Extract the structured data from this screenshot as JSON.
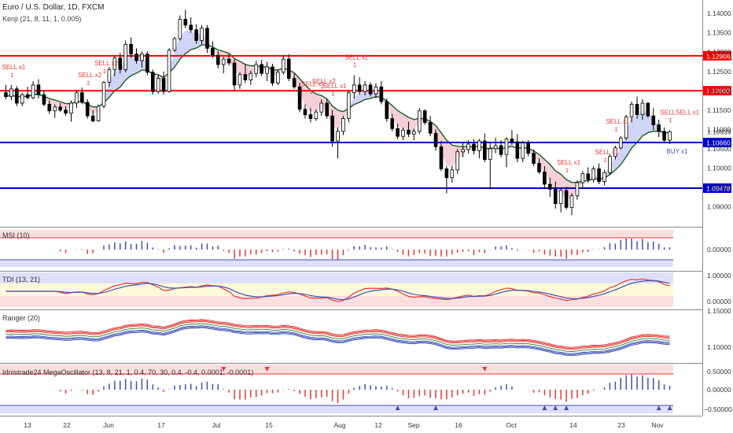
{
  "header": {
    "title": "Euro / U.S. Dollar, 1D, FXCM",
    "indicator": "Kenji (21, 8, 11, 1, 0.005)"
  },
  "panes": {
    "msi": "MSI (10)",
    "tdi": "TDI (13, 21)",
    "ranger": "Ranger (20)",
    "mega": "Idnistrade24 MegaOscillator (13, 8, 21, 1, 0.4, 70, 30, 0.4, -0.4, 0.0001, -0.0001)"
  },
  "colors": {
    "up_candle": "#ffffff",
    "down_candle": "#000000",
    "resistance": "#ff0000",
    "support": "#0000cc",
    "signal_sell": "#e53935",
    "signal_buy": "#3f51b5",
    "cloud_bull": "#c8cdf5",
    "cloud_bear": "#f5c8d2"
  },
  "chart_data": {
    "type": "candlestick",
    "y_axis": {
      "range": [
        1.085,
        1.1435
      ],
      "ticks": [
        "1.14000",
        "1.13500",
        "1.13000",
        "1.12500",
        "1.12000",
        "1.11500",
        "1.11000",
        "1.10500",
        "1.10000",
        "1.09500",
        "1.09000"
      ]
    },
    "price_lines": [
      {
        "label": "1.12906",
        "value": 1.12906,
        "color": "#ff0000"
      },
      {
        "label": "1.12002",
        "value": 1.12002,
        "color": "#ff0000"
      },
      {
        "label": "1.10660",
        "value": 1.1066,
        "color": "#0000cc"
      },
      {
        "label": "1.09478",
        "value": 1.09478,
        "color": "#0000cc"
      }
    ],
    "last_price": "1.10939",
    "x_axis_labels": [
      "13",
      "22",
      "Jun",
      "17",
      "Jul",
      "15",
      "Aug",
      "12",
      "Sep",
      "16",
      "Oct",
      "14",
      "23",
      "Nov"
    ],
    "signals": [
      {
        "text": "SELL x1",
        "type": "sell"
      },
      {
        "text": "SELL x2",
        "type": "sell"
      },
      {
        "text": "SELL x2",
        "type": "sell"
      },
      {
        "text": "SELL x1",
        "type": "sell"
      },
      {
        "text": "SELL x2",
        "type": "sell"
      },
      {
        "text": "SELL x1",
        "type": "sell"
      },
      {
        "text": "SELL x2",
        "type": "sell"
      },
      {
        "text": "SELL x1",
        "type": "sell"
      },
      {
        "text": "SELL x1",
        "type": "sell"
      },
      {
        "text": "SELL x1",
        "type": "sell"
      },
      {
        "text": "SELLSELL x1",
        "type": "sell"
      },
      {
        "text": "BUY x1",
        "type": "buy"
      }
    ],
    "candles": [
      [
        1.1195,
        1.1215,
        1.1178,
        1.1185
      ],
      [
        1.1185,
        1.1215,
        1.1175,
        1.1205
      ],
      [
        1.1205,
        1.1212,
        1.116,
        1.1168
      ],
      [
        1.1168,
        1.1195,
        1.116,
        1.119
      ],
      [
        1.119,
        1.121,
        1.1178,
        1.1182
      ],
      [
        1.1182,
        1.1225,
        1.1178,
        1.1215
      ],
      [
        1.1215,
        1.123,
        1.118,
        1.119
      ],
      [
        1.119,
        1.12,
        1.116,
        1.1165
      ],
      [
        1.1165,
        1.1175,
        1.114,
        1.1148
      ],
      [
        1.1148,
        1.1165,
        1.113,
        1.1158
      ],
      [
        1.1158,
        1.1168,
        1.1145,
        1.115
      ],
      [
        1.115,
        1.116,
        1.1135,
        1.1142
      ],
      [
        1.1142,
        1.1175,
        1.112,
        1.1168
      ],
      [
        1.1168,
        1.12,
        1.1155,
        1.1195
      ],
      [
        1.1195,
        1.1208,
        1.1165,
        1.117
      ],
      [
        1.117,
        1.1178,
        1.1128,
        1.1135
      ],
      [
        1.1135,
        1.115,
        1.1118,
        1.1122
      ],
      [
        1.1122,
        1.1165,
        1.112,
        1.116
      ],
      [
        1.116,
        1.1225,
        1.1155,
        1.1222
      ],
      [
        1.1222,
        1.1262,
        1.121,
        1.1255
      ],
      [
        1.1255,
        1.129,
        1.1238,
        1.1285
      ],
      [
        1.1285,
        1.1298,
        1.1245,
        1.1255
      ],
      [
        1.1255,
        1.133,
        1.1248,
        1.132
      ],
      [
        1.132,
        1.1338,
        1.1285,
        1.1295
      ],
      [
        1.1295,
        1.131,
        1.127,
        1.1278
      ],
      [
        1.1278,
        1.1302,
        1.126,
        1.1295
      ],
      [
        1.1295,
        1.1302,
        1.124,
        1.1248
      ],
      [
        1.1248,
        1.1255,
        1.119,
        1.1198
      ],
      [
        1.1198,
        1.124,
        1.1192,
        1.1232
      ],
      [
        1.1232,
        1.125,
        1.119,
        1.1198
      ],
      [
        1.1198,
        1.131,
        1.1195,
        1.1305
      ],
      [
        1.1305,
        1.134,
        1.13,
        1.1335
      ],
      [
        1.1335,
        1.1395,
        1.133,
        1.1385
      ],
      [
        1.1385,
        1.141,
        1.1362,
        1.137
      ],
      [
        1.137,
        1.139,
        1.135,
        1.1358
      ],
      [
        1.1358,
        1.1372,
        1.1322,
        1.133
      ],
      [
        1.133,
        1.137,
        1.132,
        1.1362
      ],
      [
        1.1362,
        1.137,
        1.1298,
        1.131
      ],
      [
        1.131,
        1.1328,
        1.1285,
        1.1292
      ],
      [
        1.1292,
        1.1302,
        1.1258,
        1.1268
      ],
      [
        1.1268,
        1.1288,
        1.1245,
        1.1282
      ],
      [
        1.1282,
        1.1295,
        1.1265,
        1.1272
      ],
      [
        1.1272,
        1.1282,
        1.1198,
        1.1215
      ],
      [
        1.1215,
        1.1248,
        1.1205,
        1.1242
      ],
      [
        1.1242,
        1.1268,
        1.122,
        1.1228
      ],
      [
        1.1228,
        1.1252,
        1.1215,
        1.1245
      ],
      [
        1.1245,
        1.1278,
        1.1235,
        1.1268
      ],
      [
        1.1268,
        1.128,
        1.1238,
        1.1245
      ],
      [
        1.1245,
        1.1275,
        1.1225,
        1.1262
      ],
      [
        1.1262,
        1.127,
        1.1212,
        1.122
      ],
      [
        1.122,
        1.1255,
        1.1215,
        1.1248
      ],
      [
        1.1248,
        1.1292,
        1.1242,
        1.1282
      ],
      [
        1.1282,
        1.1295,
        1.1225,
        1.1232
      ],
      [
        1.1232,
        1.1245,
        1.1205,
        1.121
      ],
      [
        1.121,
        1.122,
        1.1145,
        1.1152
      ],
      [
        1.1152,
        1.1165,
        1.1128,
        1.1138
      ],
      [
        1.1138,
        1.1155,
        1.1118,
        1.1128
      ],
      [
        1.1128,
        1.1152,
        1.1122,
        1.1145
      ],
      [
        1.1145,
        1.1178,
        1.1135,
        1.1168
      ],
      [
        1.1168,
        1.1178,
        1.1128,
        1.1135
      ],
      [
        1.1135,
        1.115,
        1.1055,
        1.107
      ],
      [
        1.107,
        1.1105,
        1.1025,
        1.1095
      ],
      [
        1.1095,
        1.1135,
        1.1085,
        1.1128
      ],
      [
        1.1128,
        1.12,
        1.1118,
        1.1195
      ],
      [
        1.1195,
        1.124,
        1.118,
        1.1215
      ],
      [
        1.1215,
        1.1235,
        1.119,
        1.1198
      ],
      [
        1.1198,
        1.1225,
        1.1188,
        1.1215
      ],
      [
        1.1215,
        1.1222,
        1.1185,
        1.1192
      ],
      [
        1.1192,
        1.122,
        1.118,
        1.121
      ],
      [
        1.121,
        1.1225,
        1.1165,
        1.1172
      ],
      [
        1.1172,
        1.118,
        1.112,
        1.1128
      ],
      [
        1.1128,
        1.114,
        1.1095,
        1.1102
      ],
      [
        1.1102,
        1.1115,
        1.1075,
        1.1082
      ],
      [
        1.1082,
        1.1105,
        1.1072,
        1.1098
      ],
      [
        1.1098,
        1.112,
        1.108,
        1.1088
      ],
      [
        1.1088,
        1.1102,
        1.1072,
        1.1095
      ],
      [
        1.1095,
        1.1155,
        1.1088,
        1.1148
      ],
      [
        1.1148,
        1.1152,
        1.1112,
        1.1118
      ],
      [
        1.1118,
        1.1135,
        1.1082,
        1.109
      ],
      [
        1.109,
        1.11,
        1.1045,
        1.1055
      ],
      [
        1.1055,
        1.107,
        1.0992,
        1.0998
      ],
      [
        1.0998,
        1.1005,
        1.0935,
        1.0975
      ],
      [
        1.0975,
        1.1005,
        1.0962,
        1.0995
      ],
      [
        1.0995,
        1.105,
        1.0985,
        1.1042
      ],
      [
        1.1042,
        1.1068,
        1.1028,
        1.1048
      ],
      [
        1.1048,
        1.1072,
        1.1038,
        1.1062
      ],
      [
        1.1062,
        1.1075,
        1.1035,
        1.1045
      ],
      [
        1.1045,
        1.1075,
        1.1025,
        1.107
      ],
      [
        1.107,
        1.109,
        1.1015,
        1.1022
      ],
      [
        1.1022,
        1.1068,
        1.0945,
        1.105
      ],
      [
        1.105,
        1.1078,
        1.1038,
        1.1058
      ],
      [
        1.1058,
        1.1072,
        1.1028,
        1.1035
      ],
      [
        1.1035,
        1.108,
        1.1002,
        1.1075
      ],
      [
        1.1075,
        1.1098,
        1.106,
        1.1068
      ],
      [
        1.1068,
        1.1088,
        1.1015,
        1.1025
      ],
      [
        1.1025,
        1.107,
        1.1015,
        1.1065
      ],
      [
        1.1065,
        1.1072,
        1.103,
        1.1038
      ],
      [
        1.1038,
        1.1048,
        1.1005,
        1.1012
      ],
      [
        1.1012,
        1.1025,
        1.0985,
        1.099
      ],
      [
        1.099,
        1.1005,
        1.0945,
        1.0958
      ],
      [
        1.0958,
        1.0975,
        1.0925,
        1.0945
      ],
      [
        1.0945,
        1.0965,
        1.0895,
        1.0908
      ],
      [
        1.0908,
        1.095,
        1.0885,
        1.0942
      ],
      [
        1.0942,
        1.0952,
        1.0892,
        1.0898
      ],
      [
        1.0898,
        1.0935,
        1.0878,
        1.0928
      ],
      [
        1.0928,
        1.0968,
        1.0918,
        1.0962
      ],
      [
        1.0962,
        1.0992,
        1.0948,
        1.0985
      ],
      [
        1.0985,
        1.1002,
        1.0962,
        1.097
      ],
      [
        1.097,
        1.1005,
        1.0962,
        1.0998
      ],
      [
        1.0998,
        1.1012,
        1.0958,
        1.0965
      ],
      [
        1.0965,
        1.0995,
        1.0955,
        1.0988
      ],
      [
        1.0988,
        1.1035,
        1.0982,
        1.103
      ],
      [
        1.103,
        1.1058,
        1.1022,
        1.1052
      ],
      [
        1.1052,
        1.1082,
        1.1048,
        1.1078
      ],
      [
        1.1078,
        1.1138,
        1.1072,
        1.1132
      ],
      [
        1.1132,
        1.1172,
        1.1118,
        1.1165
      ],
      [
        1.1165,
        1.1185,
        1.1128,
        1.1138
      ],
      [
        1.1138,
        1.1178,
        1.1125,
        1.1168
      ],
      [
        1.1168,
        1.117,
        1.113,
        1.1135
      ],
      [
        1.1135,
        1.1155,
        1.1098,
        1.1112
      ],
      [
        1.1112,
        1.1125,
        1.108,
        1.1095
      ],
      [
        1.1095,
        1.1105,
        1.1065,
        1.1072
      ],
      [
        1.1072,
        1.1098,
        1.1062,
        1.1094
      ]
    ]
  }
}
